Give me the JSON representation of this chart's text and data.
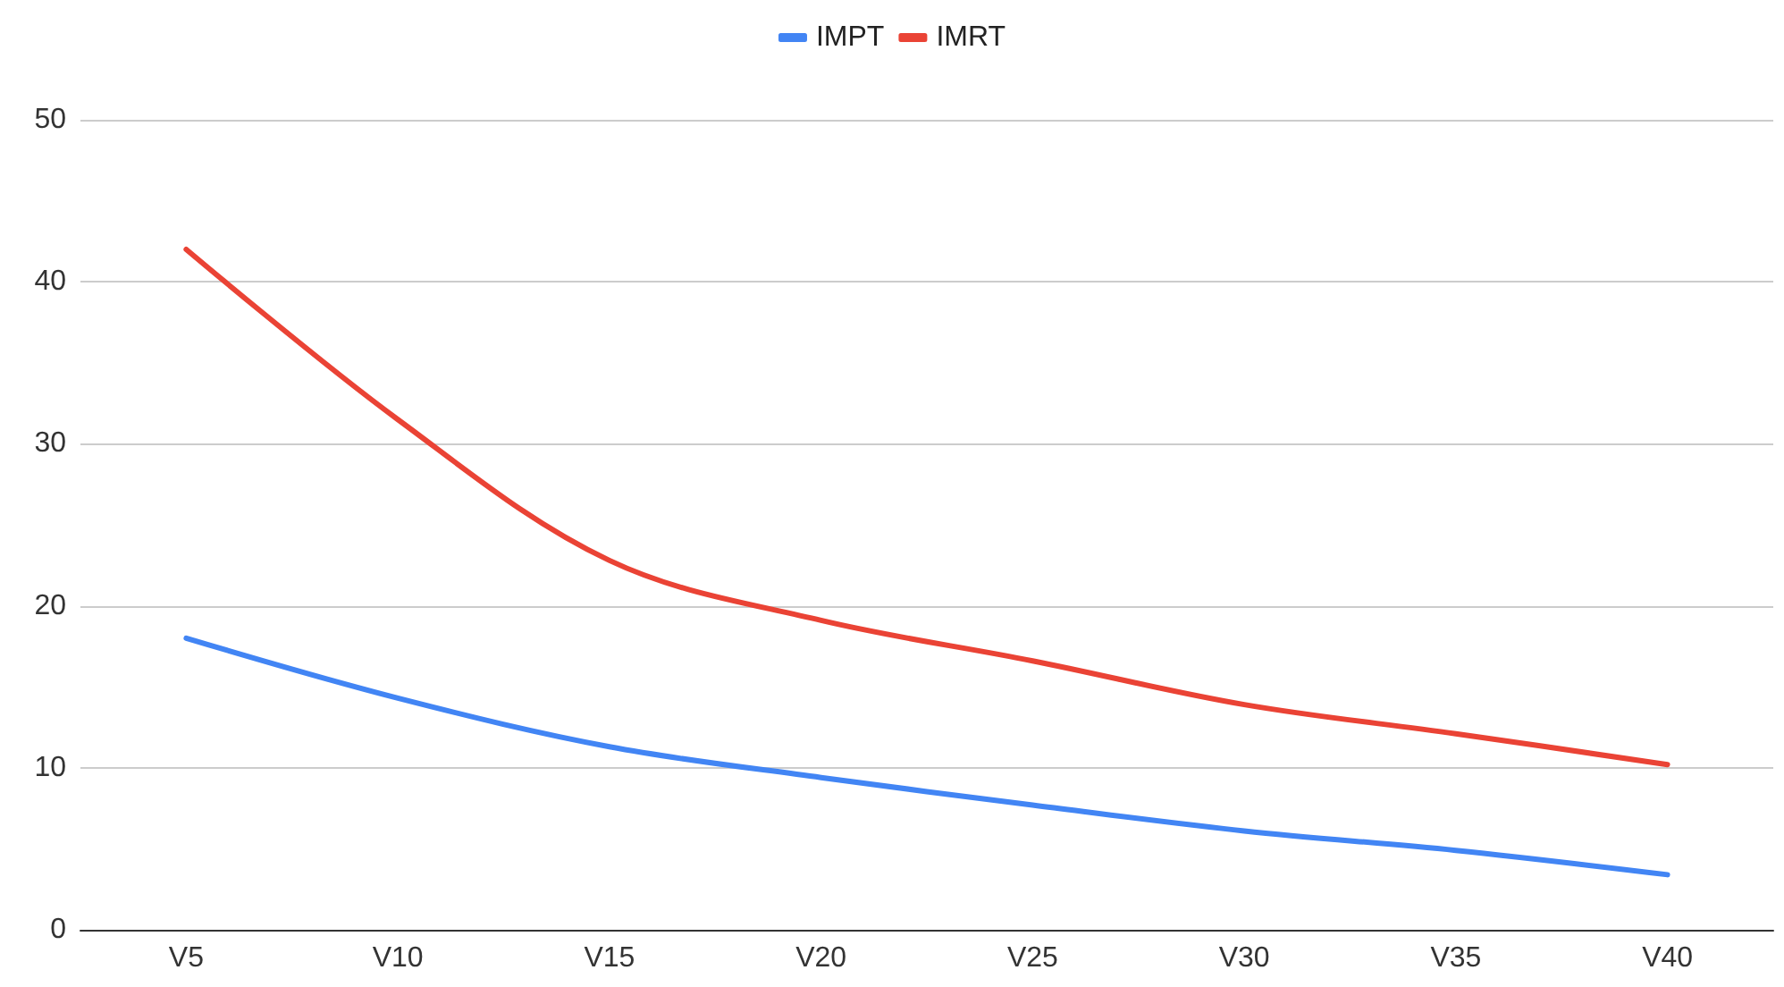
{
  "chart_data": {
    "type": "line",
    "categories": [
      "V5",
      "V10",
      "V15",
      "V20",
      "V25",
      "V30",
      "V35",
      "V40"
    ],
    "series": [
      {
        "name": "IMPT",
        "color": "#4285f4",
        "values": [
          18,
          14.3,
          11.3,
          9.4,
          7.7,
          6.1,
          4.9,
          3.4
        ]
      },
      {
        "name": "IMRT",
        "color": "#ea4335",
        "values": [
          42,
          31.5,
          22.8,
          19.1,
          16.6,
          13.9,
          12.1,
          10.2
        ]
      }
    ],
    "ylim": [
      0,
      50
    ],
    "yticks": [
      0,
      10,
      20,
      30,
      40,
      50
    ],
    "grid": "y",
    "legend": "top",
    "marker": "none",
    "line_style": "solid"
  }
}
